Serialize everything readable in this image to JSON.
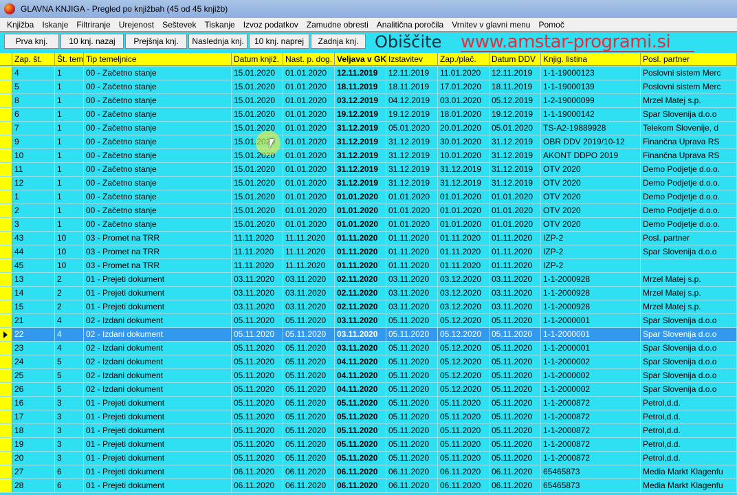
{
  "window": {
    "title": "GLAVNA KNJIGA - Pregled po knjižbah (45 od 45 knjižb)"
  },
  "menu": [
    "Knjižba",
    "Iskanje",
    "Filtriranje",
    "Urejenost",
    "Seštevek",
    "Tiskanje",
    "Izvoz podatkov",
    "Zamudne obresti",
    "Analitična poročila",
    "Vrnitev v glavni menu",
    "Pomoč"
  ],
  "toolbar": [
    "Prva knj.",
    "10 knj. nazaj",
    "Prejšnja knj.",
    "Naslednja knj.",
    "10 knj. naprej",
    "Zadnja knj."
  ],
  "columns": [
    "Zap. št.",
    "Št. tem",
    "Tip temeljnice",
    "Datum knjiž.",
    "Nast. p. dog.",
    "Veljava v GK",
    "Izstavitev",
    "Zap./plač.",
    "Datum DDV",
    "Knjig. listina",
    "Posl. partner"
  ],
  "selected_row": "22",
  "rows": [
    [
      "4",
      "1",
      "00 - Začetno stanje",
      "15.01.2020",
      "01.01.2020",
      "12.11.2019",
      "12.11.2019",
      "11.01.2020",
      "12.11.2019",
      "1-1-19000123",
      "Poslovni sistem Merc"
    ],
    [
      "5",
      "1",
      "00 - Začetno stanje",
      "15.01.2020",
      "01.01.2020",
      "18.11.2019",
      "18.11.2019",
      "17.01.2020",
      "18.11.2019",
      "1-1-19000139",
      "Poslovni sistem Merc"
    ],
    [
      "8",
      "1",
      "00 - Začetno stanje",
      "15.01.2020",
      "01.01.2020",
      "03.12.2019",
      "04.12.2019",
      "03.01.2020",
      "05.12.2019",
      "1-2-19000099",
      "Mrzel Matej s.p."
    ],
    [
      "6",
      "1",
      "00 - Začetno stanje",
      "15.01.2020",
      "01.01.2020",
      "19.12.2019",
      "19.12.2019",
      "18.01.2020",
      "19.12.2019",
      "1-1-19000142",
      "Spar Slovenija d.o.o"
    ],
    [
      "7",
      "1",
      "00 - Začetno stanje",
      "15.01.2020",
      "01.01.2020",
      "31.12.2019",
      "05.01.2020",
      "20.01.2020",
      "05.01.2020",
      "TS-A2-19889928",
      "Telekom Slovenije, d"
    ],
    [
      "9",
      "1",
      "00 - Začetno stanje",
      "15.01.2020",
      "01.01.2020",
      "31.12.2019",
      "31.12.2019",
      "30.01.2020",
      "31.12.2019",
      "OBR DDV 2019/10-12",
      "Finančna Uprava RS"
    ],
    [
      "10",
      "1",
      "00 - Začetno stanje",
      "15.01.2020",
      "01.01.2020",
      "31.12.2019",
      "31.12.2019",
      "10.01.2020",
      "31.12.2019",
      "AKONT DDPO 2019",
      "Finančna Uprava RS"
    ],
    [
      "11",
      "1",
      "00 - Začetno stanje",
      "15.01.2020",
      "01.01.2020",
      "31.12.2019",
      "31.12.2019",
      "31.12.2019",
      "31.12.2019",
      "OTV 2020",
      "Demo Podjetje d.o.o."
    ],
    [
      "12",
      "1",
      "00 - Začetno stanje",
      "15.01.2020",
      "01.01.2020",
      "31.12.2019",
      "31.12.2019",
      "31.12.2019",
      "31.12.2019",
      "OTV 2020",
      "Demo Podjetje d.o.o."
    ],
    [
      "1",
      "1",
      "00 - Začetno stanje",
      "15.01.2020",
      "01.01.2020",
      "01.01.2020",
      "01.01.2020",
      "01.01.2020",
      "01.01.2020",
      "OTV 2020",
      "Demo Podjetje d.o.o."
    ],
    [
      "2",
      "1",
      "00 - Začetno stanje",
      "15.01.2020",
      "01.01.2020",
      "01.01.2020",
      "01.01.2020",
      "01.01.2020",
      "01.01.2020",
      "OTV 2020",
      "Demo Podjetje d.o.o."
    ],
    [
      "3",
      "1",
      "00 - Začetno stanje",
      "15.01.2020",
      "01.01.2020",
      "01.01.2020",
      "01.01.2020",
      "01.01.2020",
      "01.01.2020",
      "OTV 2020",
      "Demo Podjetje d.o.o."
    ],
    [
      "43",
      "10",
      "03 - Promet na TRR",
      "11.11.2020",
      "11.11.2020",
      "01.11.2020",
      "01.11.2020",
      "01.11.2020",
      "01.11.2020",
      "IZP-2",
      "Posl. partner"
    ],
    [
      "44",
      "10",
      "03 - Promet na TRR",
      "11.11.2020",
      "11.11.2020",
      "01.11.2020",
      "01.11.2020",
      "01.11.2020",
      "01.11.2020",
      "IZP-2",
      "Spar Slovenija d.o.o"
    ],
    [
      "45",
      "10",
      "03 - Promet na TRR",
      "11.11.2020",
      "11.11.2020",
      "01.11.2020",
      "01.11.2020",
      "01.11.2020",
      "01.11.2020",
      "IZP-2",
      ""
    ],
    [
      "13",
      "2",
      "01 - Prejeti dokument",
      "03.11.2020",
      "03.11.2020",
      "02.11.2020",
      "03.11.2020",
      "03.12.2020",
      "03.11.2020",
      "1-1-2000928",
      "Mrzel Matej s.p."
    ],
    [
      "14",
      "2",
      "01 - Prejeti dokument",
      "03.11.2020",
      "03.11.2020",
      "02.11.2020",
      "03.11.2020",
      "03.12.2020",
      "03.11.2020",
      "1-1-2000928",
      "Mrzel Matej s.p."
    ],
    [
      "15",
      "2",
      "01 - Prejeti dokument",
      "03.11.2020",
      "03.11.2020",
      "02.11.2020",
      "03.11.2020",
      "03.12.2020",
      "03.11.2020",
      "1-1-2000928",
      "Mrzel Matej s.p."
    ],
    [
      "21",
      "4",
      "02 - Izdani dokument",
      "05.11.2020",
      "05.11.2020",
      "03.11.2020",
      "05.11.2020",
      "05.12.2020",
      "05.11.2020",
      "1-1-2000001",
      "Spar Slovenija d.o.o"
    ],
    [
      "22",
      "4",
      "02 - Izdani dokument",
      "05.11.2020",
      "05.11.2020",
      "03.11.2020",
      "05.11.2020",
      "05.12.2020",
      "05.11.2020",
      "1-1-2000001",
      "Spar Slovenija d.o.o"
    ],
    [
      "23",
      "4",
      "02 - Izdani dokument",
      "05.11.2020",
      "05.11.2020",
      "03.11.2020",
      "05.11.2020",
      "05.12.2020",
      "05.11.2020",
      "1-1-2000001",
      "Spar Slovenija d.o.o"
    ],
    [
      "24",
      "5",
      "02 - Izdani dokument",
      "05.11.2020",
      "05.11.2020",
      "04.11.2020",
      "05.11.2020",
      "05.12.2020",
      "05.11.2020",
      "1-1-2000002",
      "Spar Slovenija d.o.o"
    ],
    [
      "25",
      "5",
      "02 - Izdani dokument",
      "05.11.2020",
      "05.11.2020",
      "04.11.2020",
      "05.11.2020",
      "05.12.2020",
      "05.11.2020",
      "1-1-2000002",
      "Spar Slovenija d.o.o"
    ],
    [
      "26",
      "5",
      "02 - Izdani dokument",
      "05.11.2020",
      "05.11.2020",
      "04.11.2020",
      "05.11.2020",
      "05.12.2020",
      "05.11.2020",
      "1-1-2000002",
      "Spar Slovenija d.o.o"
    ],
    [
      "16",
      "3",
      "01 - Prejeti dokument",
      "05.11.2020",
      "05.11.2020",
      "05.11.2020",
      "05.11.2020",
      "05.11.2020",
      "05.11.2020",
      "1-1-2000872",
      "Petrol,d.d."
    ],
    [
      "17",
      "3",
      "01 - Prejeti dokument",
      "05.11.2020",
      "05.11.2020",
      "05.11.2020",
      "05.11.2020",
      "05.11.2020",
      "05.11.2020",
      "1-1-2000872",
      "Petrol,d.d."
    ],
    [
      "18",
      "3",
      "01 - Prejeti dokument",
      "05.11.2020",
      "05.11.2020",
      "05.11.2020",
      "05.11.2020",
      "05.11.2020",
      "05.11.2020",
      "1-1-2000872",
      "Petrol,d.d."
    ],
    [
      "19",
      "3",
      "01 - Prejeti dokument",
      "05.11.2020",
      "05.11.2020",
      "05.11.2020",
      "05.11.2020",
      "05.11.2020",
      "05.11.2020",
      "1-1-2000872",
      "Petrol,d.d."
    ],
    [
      "20",
      "3",
      "01 - Prejeti dokument",
      "05.11.2020",
      "05.11.2020",
      "05.11.2020",
      "05.11.2020",
      "05.11.2020",
      "05.11.2020",
      "1-1-2000872",
      "Petrol,d.d."
    ],
    [
      "27",
      "6",
      "01 - Prejeti dokument",
      "06.11.2020",
      "06.11.2020",
      "06.11.2020",
      "06.11.2020",
      "06.11.2020",
      "06.11.2020",
      "65465873",
      "Media Markt Klagenfu"
    ],
    [
      "28",
      "6",
      "01 - Prejeti dokument",
      "06.11.2020",
      "06.11.2020",
      "06.11.2020",
      "06.11.2020",
      "06.11.2020",
      "06.11.2020",
      "65465873",
      "Media Markt Klagenfu"
    ]
  ],
  "watermark": {
    "line1": "Obiščite",
    "line2": "www.amstar-programi.si"
  },
  "colors": {
    "background": "#2fe0f2",
    "header": "#ffff00",
    "selection": "#3399ee"
  }
}
